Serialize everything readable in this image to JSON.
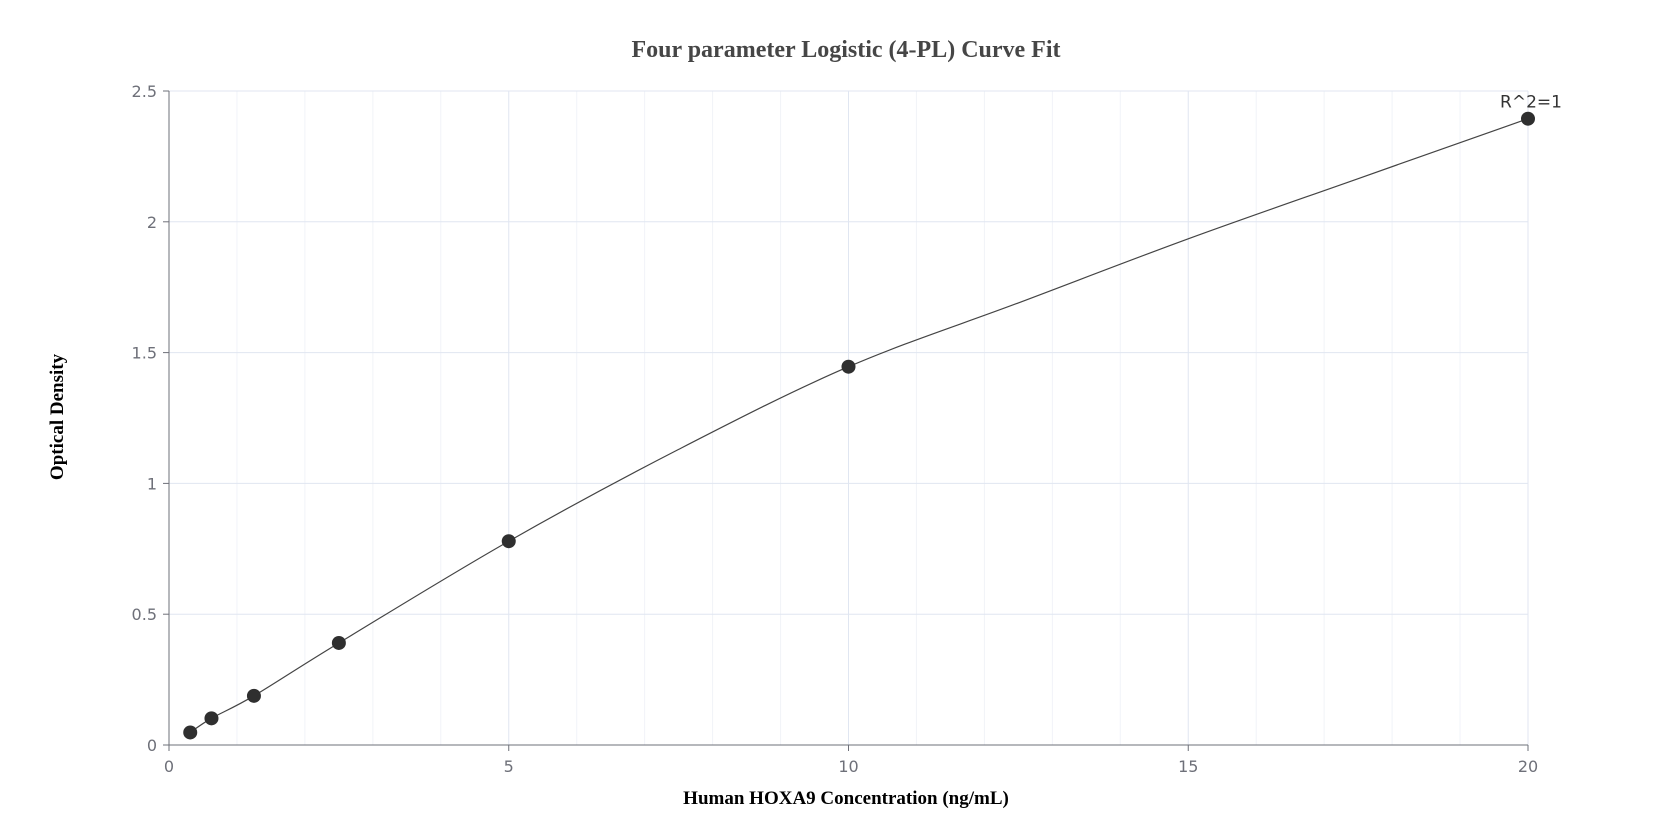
{
  "chart_data": {
    "type": "scatter",
    "title": "Four parameter Logistic (4-PL) Curve Fit",
    "xlabel": "Human HOXA9 Concentration (ng/mL)",
    "ylabel": "Optical Density",
    "xlim": [
      0,
      20
    ],
    "ylim": [
      0,
      2.5
    ],
    "x_ticks": [
      "0",
      "5",
      "10",
      "15",
      "20"
    ],
    "y_ticks": [
      "0",
      "0.5",
      "1",
      "1.5",
      "2",
      "2.5"
    ],
    "x_tick_values": [
      0,
      5,
      10,
      15,
      20
    ],
    "y_tick_values": [
      0,
      0.5,
      1,
      1.5,
      2,
      2.5
    ],
    "x_minor_step": 1,
    "grid": true,
    "series": [
      {
        "type": "scatter",
        "x": [
          0.3125,
          0.625,
          1.25,
          2.5,
          5,
          10,
          20
        ],
        "y": [
          0.048,
          0.102,
          0.188,
          0.39,
          0.779,
          1.446,
          2.394
        ]
      },
      {
        "type": "line",
        "fit": "4PL",
        "x": [
          0.3125,
          0.625,
          1.25,
          2.5,
          5,
          7.5,
          10,
          12.5,
          15,
          17.5,
          20
        ],
        "y": [
          0.048,
          0.102,
          0.188,
          0.39,
          0.779,
          1.13,
          1.446,
          1.69,
          1.935,
          2.165,
          2.394
        ]
      }
    ],
    "annotations": [
      {
        "text": "R^2=1",
        "x": 20,
        "y": 2.394
      }
    ],
    "colors": {
      "marker": "#2f2f2f",
      "line": "#444444",
      "grid_major": "#e0e6f1",
      "grid_minor": "#f1f3f8",
      "axis": "#6e7079"
    }
  }
}
